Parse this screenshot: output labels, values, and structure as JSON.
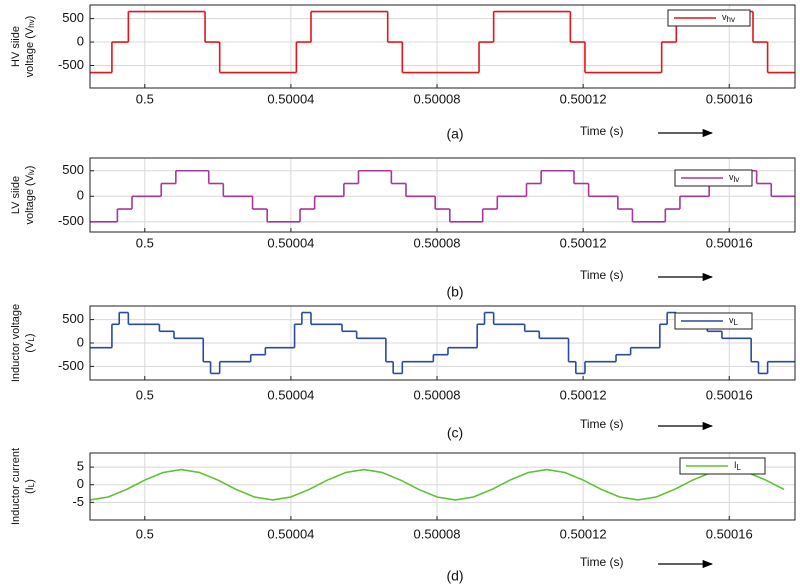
{
  "chart_data": [
    {
      "type": "line",
      "drawstyle": "steps-post",
      "grid": true,
      "caption": "(a)",
      "xlabel": "Time (s)",
      "ylabel": [
        "HV siide",
        "voltage (V",
        "hv",
        ")"
      ],
      "xlim": [
        0.499985,
        0.500178
      ],
      "xticks": [
        0.5,
        0.50004,
        0.50008,
        0.50012,
        0.50016
      ],
      "ylim": [
        -980,
        790
      ],
      "yticks": [
        500,
        0,
        -500
      ],
      "legend": "upper right",
      "x": [
        0.499985,
        0.499991,
        0.4999955,
        0.5000165,
        0.5000205,
        0.5000415,
        0.5000455,
        0.5000665,
        0.5000705,
        0.5000915,
        0.5000955,
        0.5001165,
        0.5001205,
        0.5001415,
        0.5001455,
        0.5001665,
        0.5001705
      ],
      "series": [
        {
          "name": "v",
          "name_sub": "hv",
          "color": "#e3151b",
          "values": [
            -650,
            0,
            650,
            0,
            -650,
            0,
            650,
            0,
            -650,
            0,
            650,
            0,
            -650,
            0,
            650,
            0,
            -650
          ]
        }
      ]
    },
    {
      "type": "line",
      "drawstyle": "steps-post",
      "grid": true,
      "caption": "(b)",
      "xlabel": "Time (s)",
      "ylabel": [
        "LV siide",
        "voltage (V",
        "lv",
        ")"
      ],
      "xlim": [
        0.499985,
        0.500178
      ],
      "xticks": [
        0.5,
        0.50004,
        0.50008,
        0.50012,
        0.50016
      ],
      "ylim": [
        -700,
        750
      ],
      "yticks": [
        500,
        0,
        -500
      ],
      "legend": "upper right",
      "x": [
        0.499985,
        0.4999925,
        0.4999965,
        0.5000045,
        0.5000085,
        0.5000175,
        0.5000215,
        0.5000295,
        0.5000335,
        0.5000425,
        0.5000465,
        0.5000545,
        0.5000585,
        0.5000675,
        0.5000715,
        0.5000795,
        0.5000835,
        0.5000925,
        0.5000965,
        0.5001045,
        0.5001085,
        0.5001175,
        0.5001215,
        0.5001295,
        0.5001335,
        0.5001425,
        0.5001465,
        0.5001545,
        0.5001585,
        0.5001675,
        0.5001715
      ],
      "series": [
        {
          "name": "v",
          "name_sub": "lv",
          "color": "#a8359a",
          "values": [
            -500,
            -250,
            0,
            250,
            500,
            250,
            0,
            -250,
            -500,
            -250,
            0,
            250,
            500,
            250,
            0,
            -250,
            -500,
            -250,
            0,
            250,
            500,
            250,
            0,
            -250,
            -500,
            -250,
            0,
            250,
            500,
            250,
            0
          ]
        }
      ]
    },
    {
      "type": "line",
      "drawstyle": "steps-post",
      "grid": true,
      "caption": "(c)",
      "xlabel": "Time (s)",
      "ylabel": [
        "Inductor voltage",
        "(V",
        "L",
        ")"
      ],
      "xlim": [
        0.499985,
        0.500178
      ],
      "xticks": [
        0.5,
        0.50004,
        0.50008,
        0.50012,
        0.50016
      ],
      "ylim": [
        -790,
        790
      ],
      "yticks": [
        500,
        0,
        -500
      ],
      "legend": "upper right",
      "x": [
        0.499985,
        0.499991,
        0.499993,
        0.4999955,
        0.500004,
        0.500008,
        0.500016,
        0.500018,
        0.5000205,
        0.500029,
        0.500033,
        0.500041,
        0.500043,
        0.5000455,
        0.500054,
        0.500058,
        0.500066,
        0.500068,
        0.5000705,
        0.500079,
        0.500083,
        0.500091,
        0.500093,
        0.5000955,
        0.500104,
        0.500108,
        0.500116,
        0.500118,
        0.5001205,
        0.500129,
        0.500133,
        0.500141,
        0.500143,
        0.5001455,
        0.500154,
        0.500158,
        0.500166,
        0.500168,
        0.5001705
      ],
      "series": [
        {
          "name": "v",
          "name_sub": "L",
          "color": "#2a4a9e",
          "values": [
            -100,
            400,
            650,
            400,
            250,
            100,
            -400,
            -650,
            -400,
            -250,
            -100,
            400,
            650,
            400,
            250,
            100,
            -400,
            -650,
            -400,
            -250,
            -100,
            400,
            650,
            400,
            250,
            100,
            -400,
            -650,
            -400,
            -250,
            -100,
            400,
            650,
            400,
            250,
            100,
            -400,
            -650,
            -400
          ]
        }
      ]
    },
    {
      "type": "line",
      "grid": true,
      "caption": "(d)",
      "xlabel": "Time (s)",
      "ylabel": [
        "Inductor current",
        "(I",
        "L",
        ")"
      ],
      "xlim": [
        0.499985,
        0.500178
      ],
      "xticks": [
        0.5,
        0.50004,
        0.50008,
        0.50012,
        0.50016
      ],
      "ylim": [
        -10,
        9
      ],
      "yticks": [
        5,
        0,
        -5
      ],
      "legend": "upper right",
      "x": [
        0.499985,
        0.49999,
        0.499995,
        0.5,
        0.500005,
        0.50001,
        0.500015,
        0.50002,
        0.500025,
        0.50003,
        0.500035,
        0.50004,
        0.500045,
        0.50005,
        0.500055,
        0.50006,
        0.500065,
        0.50007,
        0.500075,
        0.50008,
        0.500085,
        0.50009,
        0.500095,
        0.5001,
        0.500105,
        0.50011,
        0.500115,
        0.50012,
        0.500125,
        0.50013,
        0.500135,
        0.50014,
        0.500145,
        0.50015,
        0.500155,
        0.50016,
        0.500165,
        0.50017,
        0.500175
      ],
      "series": [
        {
          "name": "I",
          "name_sub": "L",
          "color": "#5cc232",
          "values": [
            -4.3,
            -3.48,
            -1.33,
            1.33,
            3.48,
            4.3,
            3.48,
            1.33,
            -1.33,
            -3.48,
            -4.3,
            -3.48,
            -1.33,
            1.33,
            3.48,
            4.3,
            3.48,
            1.33,
            -1.33,
            -3.48,
            -4.3,
            -3.48,
            -1.33,
            1.33,
            3.48,
            4.3,
            3.48,
            1.33,
            -1.33,
            -3.48,
            -4.3,
            -3.48,
            -1.33,
            1.33,
            3.48,
            4.3,
            3.48,
            1.33,
            -1.33
          ]
        }
      ]
    }
  ]
}
